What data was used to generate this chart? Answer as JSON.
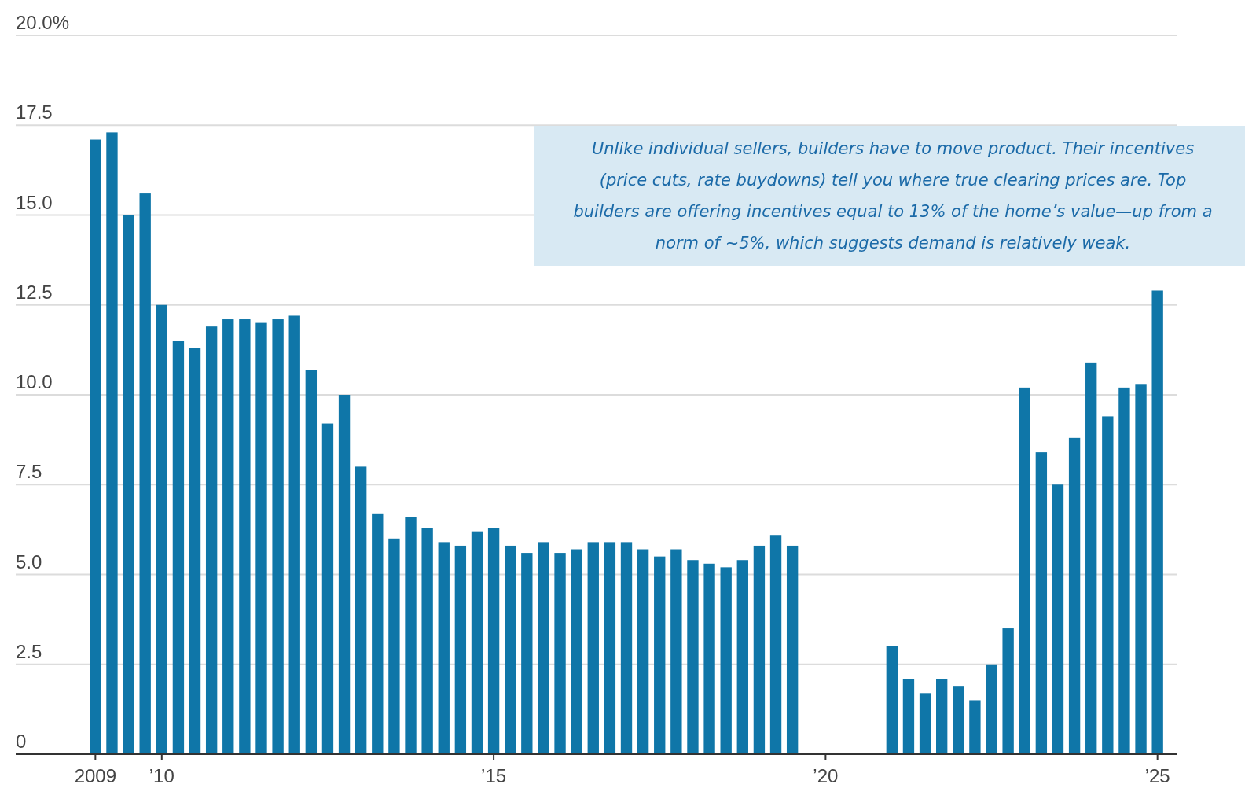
{
  "chart_data": {
    "type": "bar",
    "color": "#0f76a8",
    "x": [
      2009,
      2009.25,
      2009.5,
      2009.75,
      2010,
      2010.25,
      2010.5,
      2010.75,
      2011,
      2011.25,
      2011.5,
      2011.75,
      2012,
      2012.25,
      2012.5,
      2012.75,
      2013,
      2013.25,
      2013.5,
      2013.75,
      2014,
      2014.25,
      2014.5,
      2014.75,
      2015,
      2015.25,
      2015.5,
      2015.75,
      2016,
      2016.25,
      2016.5,
      2016.75,
      2017,
      2017.25,
      2017.5,
      2017.75,
      2018,
      2018.25,
      2018.5,
      2018.75,
      2019,
      2019.25,
      2019.5,
      2021,
      2021.25,
      2021.5,
      2021.75,
      2022,
      2022.25,
      2022.5,
      2022.75,
      2023,
      2023.25,
      2023.5,
      2023.75,
      2024,
      2024.25,
      2024.5,
      2024.75,
      2025
    ],
    "values": [
      17.1,
      17.3,
      15.0,
      15.6,
      12.5,
      11.5,
      11.3,
      11.9,
      12.1,
      12.1,
      12.0,
      12.1,
      12.2,
      10.7,
      9.2,
      10.0,
      8.0,
      6.7,
      6.0,
      6.6,
      6.3,
      5.9,
      5.8,
      6.2,
      6.3,
      5.8,
      5.6,
      5.9,
      5.6,
      5.7,
      5.9,
      5.9,
      5.9,
      5.7,
      5.5,
      5.7,
      5.4,
      5.3,
      5.2,
      5.4,
      5.8,
      6.1,
      5.8,
      3.0,
      2.1,
      1.7,
      2.1,
      1.9,
      1.5,
      2.5,
      3.5,
      10.2,
      8.4,
      7.5,
      8.8,
      10.9,
      9.4,
      10.2,
      10.3,
      12.9
    ],
    "xlim": [
      2007.8,
      2025.3
    ],
    "xticks": [
      2009,
      {
        "value": 2010,
        "label": "’10"
      },
      {
        "value": 2015,
        "label": "’15"
      },
      {
        "value": 2020,
        "label": "’20"
      },
      {
        "value": 2025,
        "label": "’25"
      }
    ],
    "ylim": [
      0,
      20
    ],
    "yticks": [
      0,
      2.5,
      {
        "value": 5,
        "label": "5.0"
      },
      7.5,
      {
        "value": 10,
        "label": "10.0"
      },
      12.5,
      {
        "value": 15,
        "label": "15.0"
      },
      17.5,
      {
        "value": 20,
        "label": "20.0%"
      }
    ],
    "grid": "y",
    "annotations": [
      "Unlike individual sellers, builders have to move product. Their incentives (price cuts, rate buydowns) tell you where true clearing prices are. Top builders are offering incentives equal to 13% of the home’s value—up from a norm of ~5%, which suggests demand is relatively weak."
    ]
  }
}
